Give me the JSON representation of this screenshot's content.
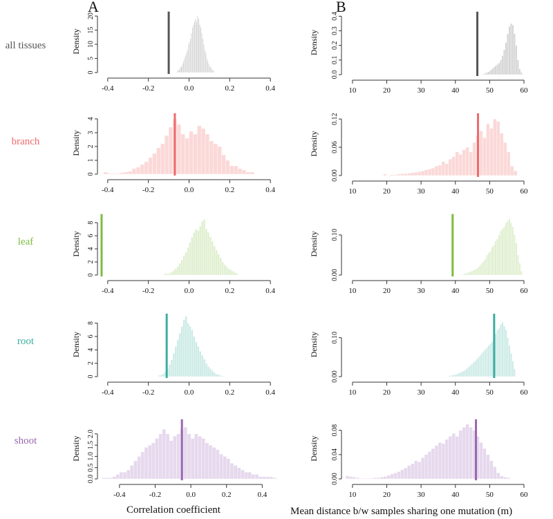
{
  "panels": {
    "left": "A",
    "right": "B"
  },
  "x_labels": {
    "left": "Correlation coefficient",
    "right": "Mean distance b/w samples sharing one mutation (m)"
  },
  "rows": [
    {
      "label": "all tissues",
      "color": "#555555",
      "fill": "#d4d4d4"
    },
    {
      "label": "branch",
      "color": "#ef6a6a",
      "fill": "#fbd9d9"
    },
    {
      "label": "leaf",
      "color": "#7dbb3c",
      "fill": "#e0efcf"
    },
    {
      "label": "root",
      "color": "#3aada0",
      "fill": "#cdebe6"
    },
    {
      "label": "shoot",
      "color": "#9966b0",
      "fill": "#e6d9ee"
    }
  ],
  "chart_data": [
    {
      "panel": "A",
      "row": "all tissues",
      "type": "histogram",
      "ylabel": "Density",
      "xlim": [
        -0.43,
        0.43
      ],
      "xticks": [
        "-0.4",
        "-0.2",
        "0.0",
        "0.2",
        "0.4"
      ],
      "xtick_values": [
        -0.4,
        -0.2,
        0,
        0.2,
        0.4
      ],
      "ylim": [
        0,
        22
      ],
      "yticks": [
        "0",
        "5",
        "10",
        "15",
        "20"
      ],
      "ytick_values": [
        0,
        5,
        10,
        15,
        20
      ],
      "bin_start": -0.06,
      "bin_width": 0.005,
      "densities": [
        0.5,
        1,
        1,
        2,
        2,
        3,
        4,
        5,
        6,
        7,
        8,
        10,
        11,
        12,
        14,
        16,
        17,
        18,
        19,
        18,
        20,
        19,
        17,
        16,
        14,
        12,
        10,
        8,
        7,
        5,
        4,
        3,
        2,
        2,
        1,
        1,
        0.5
      ],
      "observed": -0.1
    },
    {
      "panel": "B",
      "row": "all tissues",
      "type": "histogram",
      "ylabel": "Density",
      "xlim": [
        8,
        60
      ],
      "xticks": [
        "10",
        "20",
        "30",
        "40",
        "50",
        "60"
      ],
      "xtick_values": [
        10,
        20,
        30,
        40,
        50,
        60
      ],
      "ylim": [
        0,
        0.44
      ],
      "yticks": [
        "0.0",
        "0.1",
        "0.2",
        "0.3",
        "0.4"
      ],
      "ytick_values": [
        0,
        0.1,
        0.2,
        0.3,
        0.4
      ],
      "bin_start": 48,
      "bin_width": 0.5,
      "densities": [
        0.005,
        0.01,
        0.015,
        0.02,
        0.03,
        0.04,
        0.05,
        0.06,
        0.07,
        0.08,
        0.1,
        0.13,
        0.17,
        0.22,
        0.28,
        0.33,
        0.35,
        0.34,
        0.28,
        0.2,
        0.1,
        0.04,
        0.015
      ],
      "observed": 46.4
    },
    {
      "panel": "A",
      "row": "branch",
      "type": "histogram",
      "ylabel": "Density",
      "xlim": [
        -0.43,
        0.43
      ],
      "xticks": [
        "-0.4",
        "-0.2",
        "0.0",
        "0.2",
        "0.4"
      ],
      "xtick_values": [
        -0.4,
        -0.2,
        0,
        0.2,
        0.4
      ],
      "ylim": [
        0,
        4.5
      ],
      "yticks": [
        "0",
        "1",
        "2",
        "3",
        "4"
      ],
      "ytick_values": [
        0,
        1,
        2,
        3,
        4
      ],
      "bin_start": -0.42,
      "bin_width": 0.02,
      "densities": [
        0.15,
        0.05,
        0.05,
        0.05,
        0.1,
        0.15,
        0.2,
        0.4,
        0.5,
        0.7,
        0.9,
        1.2,
        1.5,
        1.9,
        2.2,
        2.8,
        3.4,
        4.0,
        3.6,
        2.9,
        2.6,
        3.1,
        2.9,
        3.5,
        3.3,
        2.9,
        2.4,
        2.2,
        2.0,
        1.4,
        1.0,
        0.6,
        0.6,
        0.4,
        0.3,
        0.15,
        0.15
      ],
      "observed": -0.07
    },
    {
      "panel": "B",
      "row": "branch",
      "type": "histogram",
      "ylabel": "Density",
      "xlim": [
        8,
        60
      ],
      "xticks": [
        "10",
        "20",
        "30",
        "40",
        "50",
        "60"
      ],
      "xtick_values": [
        10,
        20,
        30,
        40,
        50,
        60
      ],
      "ylim": [
        0,
        0.135
      ],
      "yticks": [
        "0.00",
        "0.06",
        "0.12"
      ],
      "ytick_values": [
        0,
        0.06,
        0.12
      ],
      "bin_start": 19,
      "bin_width": 1,
      "densities": [
        0.003,
        0,
        0.002,
        0.002,
        0.003,
        0.004,
        0.004,
        0.005,
        0.006,
        0.007,
        0.008,
        0.01,
        0.012,
        0.014,
        0.016,
        0.02,
        0.022,
        0.03,
        0.025,
        0.035,
        0.04,
        0.05,
        0.045,
        0.055,
        0.06,
        0.05,
        0.07,
        0.085,
        0.095,
        0.08,
        0.11,
        0.1,
        0.12,
        0.115,
        0.09,
        0.07,
        0.05,
        0.02,
        0.01
      ],
      "observed": 46.6
    },
    {
      "panel": "A",
      "row": "leaf",
      "type": "histogram",
      "ylabel": "Density",
      "xlim": [
        -0.43,
        0.43
      ],
      "xticks": [
        "-0.4",
        "-0.2",
        "0.0",
        "0.2",
        "0.4"
      ],
      "xtick_values": [
        -0.4,
        -0.2,
        0,
        0.2,
        0.4
      ],
      "ylim": [
        0,
        9.5
      ],
      "yticks": [
        "0",
        "2",
        "4",
        "6",
        "8"
      ],
      "ytick_values": [
        0,
        2,
        4,
        6,
        8
      ],
      "bin_start": -0.12,
      "bin_width": 0.01,
      "densities": [
        0.3,
        0.2,
        0.3,
        0.5,
        0.7,
        1,
        1.3,
        1.8,
        2.3,
        3,
        3.5,
        4.2,
        5,
        5.8,
        6.5,
        7,
        6.8,
        7.5,
        8.2,
        8.5,
        7,
        6.5,
        5.8,
        5.2,
        4.4,
        3.8,
        3.2,
        2.6,
        2,
        1.6,
        1.3,
        1,
        0.8,
        0.6,
        0.4,
        0.3
      ],
      "observed": -0.43
    },
    {
      "panel": "B",
      "row": "leaf",
      "type": "histogram",
      "ylabel": "Density",
      "xlim": [
        8,
        60
      ],
      "xticks": [
        "10",
        "20",
        "30",
        "40",
        "50",
        "60"
      ],
      "xtick_values": [
        10,
        20,
        30,
        40,
        50,
        60
      ],
      "ylim": [
        0,
        0.155
      ],
      "yticks": [
        "0.00",
        "0.10"
      ],
      "ytick_values": [
        0,
        0.1
      ],
      "bin_start": 42,
      "bin_width": 0.5,
      "densities": [
        0.002,
        0.004,
        0.005,
        0.006,
        0.008,
        0.01,
        0.012,
        0.014,
        0.016,
        0.02,
        0.025,
        0.03,
        0.035,
        0.04,
        0.05,
        0.055,
        0.06,
        0.07,
        0.075,
        0.085,
        0.09,
        0.1,
        0.11,
        0.115,
        0.12,
        0.13,
        0.135,
        0.14,
        0.13,
        0.12,
        0.1,
        0.08,
        0.05,
        0.03,
        0.01
      ],
      "observed": 39.2
    },
    {
      "panel": "A",
      "row": "root",
      "type": "histogram",
      "ylabel": "Density",
      "xlim": [
        -0.43,
        0.43
      ],
      "xticks": [
        "-0.4",
        "-0.2",
        "0.0",
        "0.2",
        "0.4"
      ],
      "xtick_values": [
        -0.4,
        -0.2,
        0,
        0.2,
        0.4
      ],
      "ylim": [
        0,
        9.6
      ],
      "yticks": [
        "0",
        "2",
        "4",
        "6",
        "8"
      ],
      "ytick_values": [
        0,
        2,
        4,
        6,
        8
      ],
      "bin_start": -0.15,
      "bin_width": 0.01,
      "densities": [
        0.2,
        0.3,
        0.5,
        0.8,
        1.2,
        1.8,
        2.5,
        3.5,
        4.5,
        5.5,
        6.5,
        7.5,
        8.5,
        9,
        8,
        7.5,
        7,
        6,
        5.2,
        4.5,
        3.8,
        3.2,
        2.6,
        2,
        1.5,
        1.2,
        0.9,
        0.6,
        0.4,
        0.3,
        0.2,
        0.1
      ],
      "observed": -0.11
    },
    {
      "panel": "B",
      "row": "root",
      "type": "histogram",
      "ylabel": "Density",
      "xlim": [
        8,
        60
      ],
      "xticks": [
        "10",
        "20",
        "30",
        "40",
        "50",
        "60"
      ],
      "xtick_values": [
        10,
        20,
        30,
        40,
        50,
        60
      ],
      "ylim": [
        0,
        0.165
      ],
      "yticks": [
        "0.00",
        "0.10"
      ],
      "ytick_values": [
        0,
        0.1
      ],
      "bin_start": 38,
      "bin_width": 0.5,
      "densities": [
        0.002,
        0.003,
        0.004,
        0.005,
        0.006,
        0.008,
        0.01,
        0.012,
        0.014,
        0.016,
        0.02,
        0.024,
        0.028,
        0.032,
        0.036,
        0.04,
        0.045,
        0.05,
        0.055,
        0.06,
        0.065,
        0.07,
        0.075,
        0.08,
        0.085,
        0.09,
        0.1,
        0.11,
        0.12,
        0.125,
        0.135,
        0.14,
        0.13,
        0.12,
        0.1,
        0.08,
        0.06,
        0.04,
        0.02
      ],
      "observed": 51.3
    },
    {
      "panel": "A",
      "row": "shoot",
      "type": "histogram",
      "ylabel": "Density",
      "xlim": [
        -0.5,
        0.48
      ],
      "xticks": [
        "-0.4",
        "-0.2",
        "0.0",
        "0.2",
        "0.4"
      ],
      "xtick_values": [
        -0.4,
        -0.2,
        0,
        0.2,
        0.4
      ],
      "ylim": [
        0,
        2.7
      ],
      "yticks": [
        "0.0",
        "0.5",
        "1.0",
        "1.5",
        "2.0"
      ],
      "ytick_values": [
        0,
        0.5,
        1,
        1.5,
        2
      ],
      "bin_start": -0.5,
      "bin_width": 0.02,
      "densities": [
        0.05,
        0.05,
        0.05,
        0.1,
        0.2,
        0.3,
        0.3,
        0.4,
        0.6,
        0.8,
        1.0,
        1.2,
        1.4,
        1.5,
        1.6,
        1.8,
        2.0,
        2.2,
        2.0,
        1.7,
        1.9,
        2.0,
        2.2,
        2.3,
        2.0,
        1.8,
        2.0,
        1.9,
        1.8,
        1.6,
        1.5,
        1.4,
        1.3,
        1.1,
        1.0,
        0.9,
        0.7,
        0.6,
        0.5,
        0.4,
        0.3,
        0.3,
        0.2,
        0.2,
        0.1,
        0.1,
        0.1,
        0.1,
        0.05
      ],
      "observed": -0.05
    },
    {
      "panel": "B",
      "row": "shoot",
      "type": "histogram",
      "ylabel": "Density",
      "xlim": [
        8,
        60
      ],
      "xticks": [
        "10",
        "20",
        "30",
        "40",
        "50",
        "60"
      ],
      "xtick_values": [
        10,
        20,
        30,
        40,
        50,
        60
      ],
      "ylim": [
        0,
        0.1
      ],
      "yticks": [
        "0.00",
        "0.04",
        "0.08"
      ],
      "ytick_values": [
        0,
        0.04,
        0.08
      ],
      "bin_start": 8,
      "bin_width": 1,
      "densities": [
        0.005,
        0.004,
        0.003,
        0.002,
        0.001,
        0.001,
        0.001,
        0.001,
        0.002,
        0.002,
        0.003,
        0.004,
        0.006,
        0.008,
        0.01,
        0.012,
        0.015,
        0.018,
        0.022,
        0.025,
        0.03,
        0.028,
        0.035,
        0.04,
        0.045,
        0.05,
        0.055,
        0.06,
        0.058,
        0.065,
        0.07,
        0.075,
        0.07,
        0.08,
        0.085,
        0.09,
        0.085,
        0.08,
        0.07,
        0.06,
        0.05,
        0.04,
        0.03,
        0.02,
        0.01,
        0.005,
        0.003,
        0.002
      ],
      "observed": 46.0
    }
  ]
}
